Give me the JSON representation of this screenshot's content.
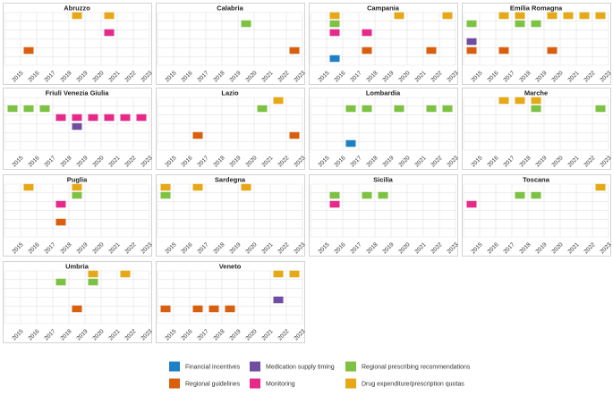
{
  "chart_data": {
    "type": "timeline-grid",
    "years": [
      "2015",
      "2016",
      "2017",
      "2018",
      "2019",
      "2020",
      "2021",
      "2022",
      "2023"
    ],
    "categories": [
      {
        "key": "financial",
        "label": "Financial incentives",
        "color": "#1f7fc4"
      },
      {
        "key": "supply",
        "label": "Medication supply timing",
        "color": "#6f4ea0"
      },
      {
        "key": "prescribing",
        "label": "Regional prescribing recommendations",
        "color": "#7dc242"
      },
      {
        "key": "guidelines",
        "label": "Regional guidelines",
        "color": "#d95f0e"
      },
      {
        "key": "monitoring",
        "label": "Monitoring",
        "color": "#e7298a"
      },
      {
        "key": "expenditure",
        "label": "Drug expenditure/prescription quotas",
        "color": "#e6a817"
      }
    ],
    "regions": [
      {
        "name": "Abruzzo",
        "events": [
          {
            "year": 2019,
            "category": "expenditure",
            "row": 0
          },
          {
            "year": 2021,
            "category": "expenditure",
            "row": 0
          },
          {
            "year": 2021,
            "category": "monitoring",
            "row": 2
          },
          {
            "year": 2016,
            "category": "guidelines",
            "row": 4
          }
        ]
      },
      {
        "name": "Calabria",
        "events": [
          {
            "year": 2020,
            "category": "prescribing",
            "row": 1
          },
          {
            "year": 2023,
            "category": "guidelines",
            "row": 4
          }
        ]
      },
      {
        "name": "Campania",
        "events": [
          {
            "year": 2016,
            "category": "expenditure",
            "row": 0
          },
          {
            "year": 2020,
            "category": "expenditure",
            "row": 0
          },
          {
            "year": 2023,
            "category": "expenditure",
            "row": 0
          },
          {
            "year": 2016,
            "category": "prescribing",
            "row": 1
          },
          {
            "year": 2016,
            "category": "monitoring",
            "row": 2
          },
          {
            "year": 2018,
            "category": "monitoring",
            "row": 2
          },
          {
            "year": 2018,
            "category": "guidelines",
            "row": 4
          },
          {
            "year": 2022,
            "category": "guidelines",
            "row": 4
          },
          {
            "year": 2016,
            "category": "financial",
            "row": 5
          }
        ]
      },
      {
        "name": "Emilia Romagna",
        "events": [
          {
            "year": 2017,
            "category": "expenditure",
            "row": 0
          },
          {
            "year": 2018,
            "category": "expenditure",
            "row": 0
          },
          {
            "year": 2020,
            "category": "expenditure",
            "row": 0
          },
          {
            "year": 2021,
            "category": "expenditure",
            "row": 0
          },
          {
            "year": 2022,
            "category": "expenditure",
            "row": 0
          },
          {
            "year": 2023,
            "category": "expenditure",
            "row": 0
          },
          {
            "year": 2015,
            "category": "prescribing",
            "row": 1
          },
          {
            "year": 2018,
            "category": "prescribing",
            "row": 1
          },
          {
            "year": 2019,
            "category": "prescribing",
            "row": 1
          },
          {
            "year": 2015,
            "category": "supply",
            "row": 3
          },
          {
            "year": 2015,
            "category": "guidelines",
            "row": 4
          },
          {
            "year": 2017,
            "category": "guidelines",
            "row": 4
          },
          {
            "year": 2020,
            "category": "guidelines",
            "row": 4
          }
        ]
      },
      {
        "name": "Friuli Venezia Giulia",
        "events": [
          {
            "year": 2015,
            "category": "prescribing",
            "row": 1
          },
          {
            "year": 2016,
            "category": "prescribing",
            "row": 1
          },
          {
            "year": 2017,
            "category": "prescribing",
            "row": 1
          },
          {
            "year": 2018,
            "category": "monitoring",
            "row": 2
          },
          {
            "year": 2019,
            "category": "monitoring",
            "row": 2
          },
          {
            "year": 2020,
            "category": "monitoring",
            "row": 2
          },
          {
            "year": 2021,
            "category": "monitoring",
            "row": 2
          },
          {
            "year": 2022,
            "category": "monitoring",
            "row": 2
          },
          {
            "year": 2023,
            "category": "monitoring",
            "row": 2
          },
          {
            "year": 2019,
            "category": "supply",
            "row": 3
          }
        ]
      },
      {
        "name": "Lazio",
        "events": [
          {
            "year": 2022,
            "category": "expenditure",
            "row": 0
          },
          {
            "year": 2021,
            "category": "prescribing",
            "row": 1
          },
          {
            "year": 2017,
            "category": "guidelines",
            "row": 4
          },
          {
            "year": 2023,
            "category": "guidelines",
            "row": 4
          }
        ]
      },
      {
        "name": "Lombardia",
        "events": [
          {
            "year": 2017,
            "category": "prescribing",
            "row": 1
          },
          {
            "year": 2018,
            "category": "prescribing",
            "row": 1
          },
          {
            "year": 2020,
            "category": "prescribing",
            "row": 1
          },
          {
            "year": 2022,
            "category": "prescribing",
            "row": 1
          },
          {
            "year": 2023,
            "category": "prescribing",
            "row": 1
          },
          {
            "year": 2017,
            "category": "financial",
            "row": 5
          }
        ]
      },
      {
        "name": "Marche",
        "events": [
          {
            "year": 2017,
            "category": "expenditure",
            "row": 0
          },
          {
            "year": 2018,
            "category": "expenditure",
            "row": 0
          },
          {
            "year": 2019,
            "category": "expenditure",
            "row": 0
          },
          {
            "year": 2019,
            "category": "prescribing",
            "row": 1
          },
          {
            "year": 2023,
            "category": "prescribing",
            "row": 1
          }
        ]
      },
      {
        "name": "Puglia",
        "events": [
          {
            "year": 2016,
            "category": "expenditure",
            "row": 0
          },
          {
            "year": 2019,
            "category": "expenditure",
            "row": 0
          },
          {
            "year": 2019,
            "category": "prescribing",
            "row": 1
          },
          {
            "year": 2018,
            "category": "monitoring",
            "row": 2
          },
          {
            "year": 2018,
            "category": "guidelines",
            "row": 4
          }
        ]
      },
      {
        "name": "Sardegna",
        "events": [
          {
            "year": 2015,
            "category": "expenditure",
            "row": 0
          },
          {
            "year": 2017,
            "category": "expenditure",
            "row": 0
          },
          {
            "year": 2020,
            "category": "expenditure",
            "row": 0
          },
          {
            "year": 2015,
            "category": "prescribing",
            "row": 1
          }
        ]
      },
      {
        "name": "Sicilia",
        "events": [
          {
            "year": 2016,
            "category": "prescribing",
            "row": 1
          },
          {
            "year": 2018,
            "category": "prescribing",
            "row": 1
          },
          {
            "year": 2019,
            "category": "prescribing",
            "row": 1
          },
          {
            "year": 2016,
            "category": "monitoring",
            "row": 2
          }
        ]
      },
      {
        "name": "Toscana",
        "events": [
          {
            "year": 2023,
            "category": "expenditure",
            "row": 0
          },
          {
            "year": 2018,
            "category": "prescribing",
            "row": 1
          },
          {
            "year": 2019,
            "category": "prescribing",
            "row": 1
          },
          {
            "year": 2015,
            "category": "monitoring",
            "row": 2
          }
        ]
      },
      {
        "name": "Umbria",
        "events": [
          {
            "year": 2020,
            "category": "expenditure",
            "row": 0
          },
          {
            "year": 2022,
            "category": "expenditure",
            "row": 0
          },
          {
            "year": 2018,
            "category": "prescribing",
            "row": 1
          },
          {
            "year": 2020,
            "category": "prescribing",
            "row": 1
          },
          {
            "year": 2019,
            "category": "guidelines",
            "row": 4
          }
        ]
      },
      {
        "name": "Veneto",
        "events": [
          {
            "year": 2022,
            "category": "expenditure",
            "row": 0
          },
          {
            "year": 2023,
            "category": "expenditure",
            "row": 0
          },
          {
            "year": 2022,
            "category": "supply",
            "row": 3
          },
          {
            "year": 2015,
            "category": "guidelines",
            "row": 4
          },
          {
            "year": 2017,
            "category": "guidelines",
            "row": 4
          },
          {
            "year": 2018,
            "category": "guidelines",
            "row": 4
          },
          {
            "year": 2019,
            "category": "guidelines",
            "row": 4
          }
        ]
      }
    ],
    "legend": {
      "position": "bottom",
      "order": [
        "financial",
        "supply",
        "prescribing",
        "guidelines",
        "monitoring",
        "expenditure"
      ]
    },
    "grid": true
  }
}
